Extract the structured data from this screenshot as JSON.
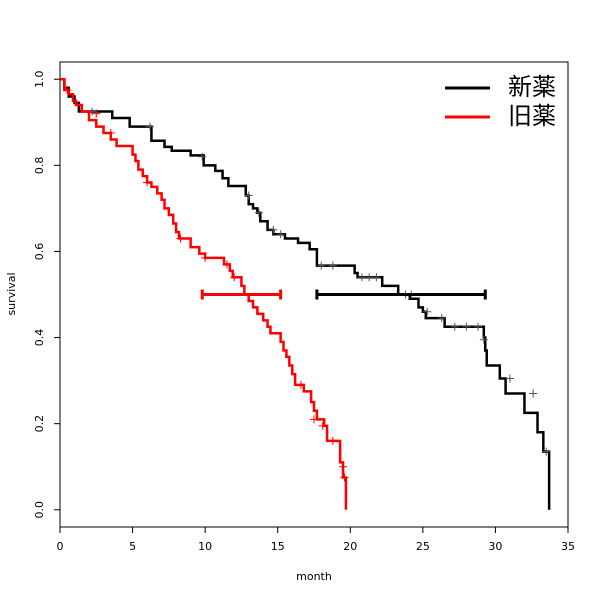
{
  "chart_data": {
    "type": "survival-step",
    "xlabel": "month",
    "ylabel": "survival",
    "xlim": [
      0,
      35
    ],
    "ylim": [
      -0.04,
      1.04
    ],
    "xticks": [
      0,
      5,
      10,
      15,
      20,
      25,
      30,
      35
    ],
    "yticks": [
      {
        "value": 0,
        "label": "0.0"
      },
      {
        "value": 0.2,
        "label": "0.2"
      },
      {
        "value": 0.4,
        "label": "0.4"
      },
      {
        "value": 0.6,
        "label": "0.6"
      },
      {
        "value": 0.8,
        "label": "0.8"
      },
      {
        "value": 1,
        "label": "1.0"
      }
    ],
    "legend": "top-right",
    "series": [
      {
        "name": "新薬",
        "color": "#000000",
        "x": [
          0,
          0.3,
          0.6,
          1.0,
          1.3,
          3.6,
          4.8,
          6.3,
          7.2,
          7.7,
          9.0,
          9.9,
          10.7,
          11.2,
          11.6,
          12.8,
          13.0,
          13.3,
          13.6,
          13.8,
          14.3,
          14.7,
          15.5,
          16.4,
          17.2,
          17.7,
          20.3,
          20.5,
          22.2,
          23.3,
          24.1,
          24.7,
          25.0,
          25.2,
          26.5,
          29.2,
          29.3,
          29.4,
          30.3,
          30.7,
          32.0,
          32.9,
          33.3,
          33.7
        ],
        "values": [
          1.0,
          0.98,
          0.96,
          0.945,
          0.925,
          0.91,
          0.89,
          0.857,
          0.843,
          0.834,
          0.823,
          0.8,
          0.787,
          0.77,
          0.752,
          0.73,
          0.71,
          0.7,
          0.69,
          0.67,
          0.65,
          0.64,
          0.63,
          0.62,
          0.605,
          0.567,
          0.55,
          0.54,
          0.52,
          0.5,
          0.49,
          0.47,
          0.46,
          0.445,
          0.425,
          0.4,
          0.37,
          0.335,
          0.305,
          0.27,
          0.225,
          0.18,
          0.135,
          0.0
        ],
        "censor_x": [
          2.2,
          6.2,
          9.8,
          13.0,
          13.7,
          14.7,
          15.2,
          18.0,
          18.8,
          20.8,
          21.3,
          21.8,
          23.8,
          24.2,
          25.3,
          26.3,
          27.2,
          28.0,
          28.8,
          29.2,
          31.0,
          32.6,
          33.5
        ],
        "censor_values": [
          0.925,
          0.89,
          0.82,
          0.73,
          0.69,
          0.65,
          0.64,
          0.567,
          0.567,
          0.54,
          0.54,
          0.54,
          0.5,
          0.5,
          0.46,
          0.445,
          0.425,
          0.425,
          0.425,
          0.395,
          0.305,
          0.27,
          0.135
        ],
        "ci_x": [
          17.7,
          29.3
        ],
        "ci_value": 0.5
      },
      {
        "name": "旧薬",
        "color": "#ff0000",
        "x": [
          0,
          0.3,
          0.6,
          0.9,
          1.1,
          1.5,
          2.0,
          2.5,
          3.0,
          3.5,
          3.9,
          5.0,
          5.2,
          5.4,
          5.7,
          6.0,
          6.3,
          6.7,
          7.0,
          7.2,
          7.5,
          7.8,
          8.0,
          8.2,
          9.0,
          9.6,
          10.0,
          11.3,
          11.7,
          11.9,
          12.5,
          12.7,
          13.0,
          13.3,
          13.6,
          14.0,
          14.3,
          14.5,
          15.2,
          15.4,
          15.6,
          15.8,
          16.0,
          16.2,
          16.8,
          17.3,
          17.5,
          17.7,
          18.2,
          18.4,
          19.3,
          19.5,
          19.7
        ],
        "values": [
          1.0,
          0.975,
          0.965,
          0.95,
          0.94,
          0.925,
          0.905,
          0.89,
          0.875,
          0.86,
          0.845,
          0.825,
          0.81,
          0.79,
          0.775,
          0.76,
          0.75,
          0.735,
          0.72,
          0.7,
          0.685,
          0.665,
          0.645,
          0.63,
          0.61,
          0.595,
          0.585,
          0.57,
          0.555,
          0.54,
          0.52,
          0.5,
          0.485,
          0.47,
          0.455,
          0.44,
          0.425,
          0.41,
          0.39,
          0.37,
          0.355,
          0.335,
          0.315,
          0.29,
          0.275,
          0.25,
          0.23,
          0.21,
          0.195,
          0.16,
          0.11,
          0.075,
          0.0
        ],
        "censor_x": [
          0.5,
          2.5,
          3.5,
          6.0,
          8.3,
          10.0,
          11.5,
          12.0,
          16.6,
          17.5,
          18.1,
          18.8,
          19.5,
          19.6
        ],
        "censor_values": [
          0.975,
          0.92,
          0.875,
          0.76,
          0.63,
          0.585,
          0.57,
          0.54,
          0.29,
          0.21,
          0.195,
          0.16,
          0.1,
          0.075
        ],
        "ci_x": [
          9.8,
          15.2
        ],
        "ci_value": 0.5
      }
    ]
  }
}
